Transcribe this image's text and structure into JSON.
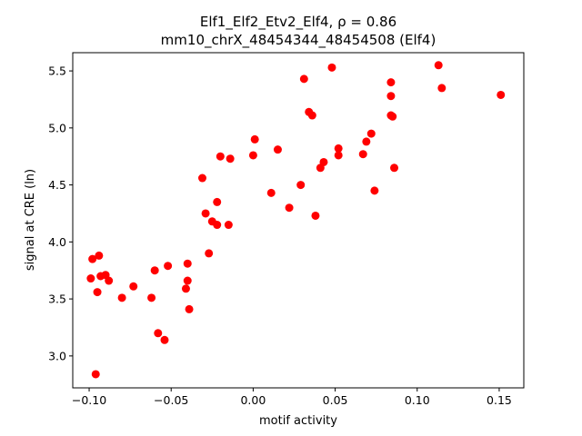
{
  "chart_data": {
    "type": "scatter",
    "title_line1": "Elf1_Elf2_Etv2_Elf4, ρ = 0.86",
    "title_line2": "mm10_chrX_48454344_48454508 (Elf4)",
    "xlabel": "motif activity",
    "ylabel": "signal at CRE (ln)",
    "xlim": [
      -0.11,
      0.165
    ],
    "ylim": [
      2.72,
      5.66
    ],
    "xticks": [
      -0.1,
      -0.05,
      0.0,
      0.05,
      0.1,
      0.15
    ],
    "xtick_labels": [
      "−0.10",
      "−0.05",
      "0.00",
      "0.05",
      "0.10",
      "0.15"
    ],
    "yticks": [
      3.0,
      3.5,
      4.0,
      4.5,
      5.0,
      5.5
    ],
    "ytick_labels": [
      "3.0",
      "3.5",
      "4.0",
      "4.5",
      "5.0",
      "5.5"
    ],
    "grid": false,
    "marker_color": "#ff0000",
    "points": [
      {
        "x": -0.099,
        "y": 3.68
      },
      {
        "x": -0.098,
        "y": 3.85
      },
      {
        "x": -0.096,
        "y": 2.84
      },
      {
        "x": -0.095,
        "y": 3.56
      },
      {
        "x": -0.094,
        "y": 3.88
      },
      {
        "x": -0.093,
        "y": 3.7
      },
      {
        "x": -0.09,
        "y": 3.71
      },
      {
        "x": -0.088,
        "y": 3.66
      },
      {
        "x": -0.08,
        "y": 3.51
      },
      {
        "x": -0.073,
        "y": 3.61
      },
      {
        "x": -0.062,
        "y": 3.51
      },
      {
        "x": -0.06,
        "y": 3.75
      },
      {
        "x": -0.058,
        "y": 3.2
      },
      {
        "x": -0.054,
        "y": 3.14
      },
      {
        "x": -0.052,
        "y": 3.79
      },
      {
        "x": -0.041,
        "y": 3.59
      },
      {
        "x": -0.04,
        "y": 3.81
      },
      {
        "x": -0.04,
        "y": 3.66
      },
      {
        "x": -0.039,
        "y": 3.41
      },
      {
        "x": -0.031,
        "y": 4.56
      },
      {
        "x": -0.029,
        "y": 4.25
      },
      {
        "x": -0.027,
        "y": 3.9
      },
      {
        "x": -0.025,
        "y": 4.18
      },
      {
        "x": -0.022,
        "y": 4.35
      },
      {
        "x": -0.022,
        "y": 4.15
      },
      {
        "x": -0.02,
        "y": 4.75
      },
      {
        "x": -0.015,
        "y": 4.15
      },
      {
        "x": -0.014,
        "y": 4.73
      },
      {
        "x": 0.0,
        "y": 4.76
      },
      {
        "x": 0.001,
        "y": 4.9
      },
      {
        "x": 0.011,
        "y": 4.43
      },
      {
        "x": 0.015,
        "y": 4.81
      },
      {
        "x": 0.022,
        "y": 4.3
      },
      {
        "x": 0.029,
        "y": 4.5
      },
      {
        "x": 0.031,
        "y": 5.43
      },
      {
        "x": 0.034,
        "y": 5.14
      },
      {
        "x": 0.036,
        "y": 5.11
      },
      {
        "x": 0.038,
        "y": 4.23
      },
      {
        "x": 0.041,
        "y": 4.65
      },
      {
        "x": 0.043,
        "y": 4.7
      },
      {
        "x": 0.048,
        "y": 5.53
      },
      {
        "x": 0.052,
        "y": 4.82
      },
      {
        "x": 0.052,
        "y": 4.76
      },
      {
        "x": 0.067,
        "y": 4.77
      },
      {
        "x": 0.069,
        "y": 4.88
      },
      {
        "x": 0.072,
        "y": 4.95
      },
      {
        "x": 0.074,
        "y": 4.45
      },
      {
        "x": 0.084,
        "y": 5.4
      },
      {
        "x": 0.084,
        "y": 5.28
      },
      {
        "x": 0.084,
        "y": 5.11
      },
      {
        "x": 0.085,
        "y": 5.1
      },
      {
        "x": 0.086,
        "y": 4.65
      },
      {
        "x": 0.113,
        "y": 5.55
      },
      {
        "x": 0.115,
        "y": 5.35
      },
      {
        "x": 0.151,
        "y": 5.29
      }
    ]
  }
}
